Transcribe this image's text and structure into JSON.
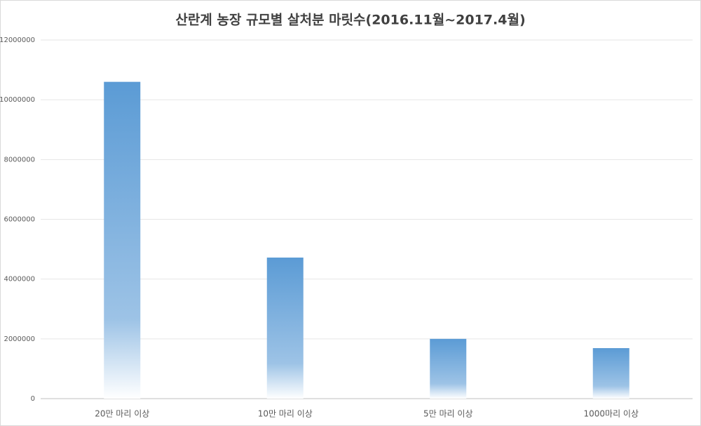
{
  "chart_data": {
    "type": "bar",
    "title": "산란계 농장 규모별 살처분 마릿수(2016.11월~2017.4월)",
    "categories": [
      "20만 마리 이상",
      "10만 마리 이상",
      "5만 마리 이상",
      "1000마리 이상"
    ],
    "values": [
      10600000,
      4720000,
      2000000,
      1690000
    ],
    "color": "#5b9bd5",
    "ylim": [
      0,
      12000000
    ],
    "yticks": [
      0,
      2000000,
      4000000,
      6000000,
      8000000,
      10000000,
      12000000
    ],
    "grid": true
  }
}
